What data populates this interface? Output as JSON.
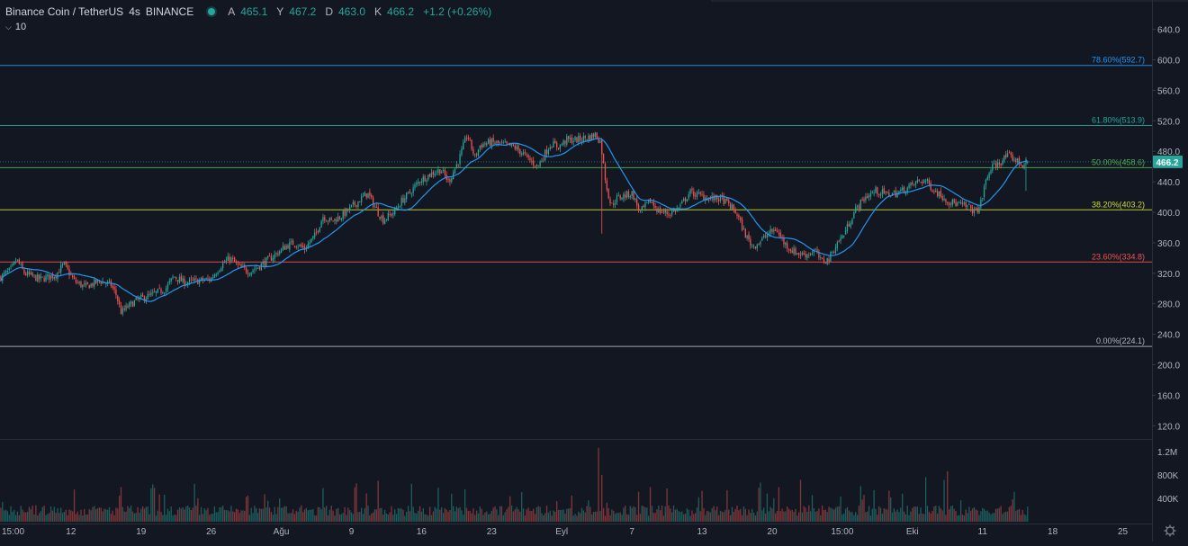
{
  "header": {
    "symbol": "Binance Coin / TetherUS",
    "interval": "4s",
    "exchange": "BINANCE",
    "status_color": "#26a69a",
    "ohlc": [
      {
        "label": "A",
        "value": "465.1"
      },
      {
        "label": "Y",
        "value": "467.2"
      },
      {
        "label": "D",
        "value": "463.0"
      },
      {
        "label": "K",
        "value": "466.2"
      }
    ],
    "change": "+1.2 (+0.26%)"
  },
  "indicator": {
    "label": "10",
    "icon": "chevron-down-icon"
  },
  "last_price_label": "466.2",
  "colors": {
    "background": "#131722",
    "up": "#26a69a",
    "down": "#ef5350",
    "ma": "#2196f3",
    "axis_text": "#b2b5be",
    "price_badge": "#26a69a"
  },
  "chart_data": {
    "type": "candlestick",
    "title": "Binance Coin / TetherUS",
    "price_axis": {
      "ticks": [
        640,
        600,
        560,
        520,
        480,
        440,
        400,
        360,
        320,
        280,
        240,
        200,
        160,
        120
      ],
      "tick_labels": [
        "640.0",
        "600.0",
        "560.0",
        "520.0",
        "480.0",
        "440.0",
        "400.0",
        "360.0",
        "320.0",
        "280.0",
        "240.0",
        "200.0",
        "160.0",
        "120.0"
      ],
      "range": [
        105,
        662
      ]
    },
    "volume_axis": {
      "ticks": [
        1200000,
        800000,
        400000
      ],
      "tick_labels": [
        "1.2M",
        "800K",
        "400K"
      ],
      "range": [
        0,
        1350000
      ]
    },
    "time_axis": {
      "labels": [
        "15:00",
        "12",
        "19",
        "26",
        "Ağu",
        "9",
        "16",
        "23",
        "Eyl",
        "7",
        "13",
        "20",
        "15:00",
        "Eki",
        "11",
        "18",
        "25"
      ],
      "positions_index": [
        0,
        42,
        84,
        126,
        168,
        210,
        252,
        294,
        336,
        378,
        420,
        462,
        504,
        546,
        588,
        630,
        672
      ],
      "last_bar_index": 615,
      "slots": 690
    },
    "fibonacci": [
      {
        "level": "0.00%",
        "price": 224.1,
        "label": "0.00%(224.1)",
        "color": "#b2b5be"
      },
      {
        "level": "23.60%",
        "price": 334.8,
        "label": "23.60%(334.8)",
        "color": "#ef5350"
      },
      {
        "level": "38.20%",
        "price": 403.2,
        "label": "38.20%(403.2)",
        "color": "#cddc39"
      },
      {
        "level": "50.00%",
        "price": 458.6,
        "label": "50.00%(458.6)",
        "color": "#4caf50"
      },
      {
        "level": "61.80%",
        "price": 513.9,
        "label": "61.80%(513.9)",
        "color": "#26a69a"
      },
      {
        "level": "78.60%",
        "price": 592.7,
        "label": "78.60%(592.7)",
        "color": "#2196f3"
      }
    ],
    "ma_length": 10,
    "price_path": [
      [
        0,
        315
      ],
      [
        8,
        325
      ],
      [
        12,
        338
      ],
      [
        18,
        320
      ],
      [
        30,
        312
      ],
      [
        42,
        318
      ],
      [
        48,
        332
      ],
      [
        56,
        310
      ],
      [
        64,
        302
      ],
      [
        76,
        310
      ],
      [
        84,
        305
      ],
      [
        88,
        292
      ],
      [
        92,
        268
      ],
      [
        96,
        275
      ],
      [
        104,
        285
      ],
      [
        116,
        292
      ],
      [
        126,
        300
      ],
      [
        132,
        316
      ],
      [
        140,
        308
      ],
      [
        150,
        310
      ],
      [
        160,
        312
      ],
      [
        168,
        330
      ],
      [
        175,
        340
      ],
      [
        182,
        328
      ],
      [
        190,
        322
      ],
      [
        198,
        330
      ],
      [
        210,
        345
      ],
      [
        218,
        356
      ],
      [
        224,
        360
      ],
      [
        232,
        352
      ],
      [
        240,
        370
      ],
      [
        246,
        395
      ],
      [
        252,
        388
      ],
      [
        260,
        395
      ],
      [
        270,
        410
      ],
      [
        280,
        425
      ],
      [
        288,
        400
      ],
      [
        292,
        390
      ],
      [
        300,
        400
      ],
      [
        306,
        415
      ],
      [
        312,
        425
      ],
      [
        320,
        442
      ],
      [
        330,
        452
      ],
      [
        336,
        456
      ],
      [
        342,
        440
      ],
      [
        350,
        470
      ],
      [
        356,
        502
      ],
      [
        362,
        472
      ],
      [
        366,
        488
      ],
      [
        374,
        492
      ],
      [
        380,
        490
      ],
      [
        386,
        488
      ],
      [
        392,
        486
      ],
      [
        398,
        478
      ],
      [
        404,
        468
      ],
      [
        410,
        460
      ],
      [
        415,
        476
      ],
      [
        420,
        490
      ],
      [
        426,
        486
      ],
      [
        432,
        495
      ],
      [
        440,
        495
      ],
      [
        448,
        498
      ],
      [
        454,
        502
      ],
      [
        458,
        492
      ],
      [
        462,
        438
      ],
      [
        466,
        408
      ],
      [
        470,
        418
      ],
      [
        476,
        422
      ],
      [
        482,
        425
      ],
      [
        488,
        400
      ],
      [
        496,
        415
      ],
      [
        502,
        402
      ],
      [
        510,
        398
      ],
      [
        518,
        406
      ],
      [
        526,
        426
      ],
      [
        534,
        422
      ],
      [
        542,
        418
      ],
      [
        550,
        418
      ],
      [
        556,
        410
      ],
      [
        562,
        398
      ],
      [
        568,
        372
      ],
      [
        574,
        355
      ],
      [
        580,
        362
      ],
      [
        586,
        372
      ],
      [
        592,
        378
      ],
      [
        598,
        360
      ],
      [
        604,
        350
      ],
      [
        610,
        345
      ],
      [
        616,
        345
      ],
      [
        622,
        350
      ],
      [
        626,
        336
      ],
      [
        632,
        338
      ],
      [
        638,
        358
      ],
      [
        644,
        372
      ],
      [
        652,
        402
      ],
      [
        660,
        420
      ],
      [
        668,
        428
      ],
      [
        676,
        424
      ],
      [
        684,
        425
      ],
      [
        692,
        432
      ],
      [
        700,
        440
      ],
      [
        706,
        442
      ],
      [
        712,
        430
      ],
      [
        718,
        422
      ],
      [
        724,
        414
      ],
      [
        732,
        410
      ],
      [
        740,
        406
      ],
      [
        744,
        400
      ],
      [
        748,
        410
      ],
      [
        752,
        440
      ],
      [
        756,
        458
      ],
      [
        762,
        464
      ],
      [
        768,
        474
      ],
      [
        774,
        470
      ],
      [
        780,
        462
      ],
      [
        784,
        466
      ]
    ]
  }
}
